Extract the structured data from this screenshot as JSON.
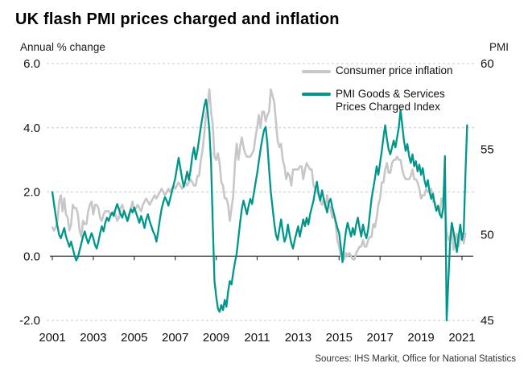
{
  "title": "UK flash PMI prices charged and inflation",
  "left_axis_label": "Annual % change",
  "right_axis_label": "PMI",
  "source": "Sources: IHS Markit, Office for National Statistics",
  "colors": {
    "cpi_line": "#c7c7c7",
    "pmi_line": "#00968b",
    "gridline": "#c9c9c9",
    "axis": "#3a3a3a",
    "text": "#111111"
  },
  "legend": [
    {
      "label": "Consumer price inflation",
      "color": "#c7c7c7"
    },
    {
      "label": "PMI Goods & Services\nPrices Charged Index",
      "color": "#00968b"
    }
  ],
  "chart_data": {
    "type": "line",
    "title": "UK flash PMI prices charged and inflation",
    "x_start_year": 2001,
    "points_per_year": 12,
    "x_tick_years": [
      2001,
      2003,
      2005,
      2007,
      2009,
      2011,
      2013,
      2015,
      2017,
      2019,
      2021
    ],
    "left_axis": {
      "label": "Annual % change",
      "tick_labels": [
        "6.0",
        "4.0",
        "2.0",
        "0.0",
        "-2.0"
      ],
      "tick_values": [
        6,
        4,
        2,
        0,
        -2
      ],
      "range": [
        -2,
        6
      ]
    },
    "right_axis": {
      "label": "PMI",
      "tick_labels": [
        "60",
        "55",
        "50",
        "45"
      ],
      "tick_values": [
        60,
        55,
        50,
        45
      ],
      "range": [
        45,
        60
      ]
    },
    "grid": "dashed horizontal, solid zero line",
    "legend_position": "top-right inside plot",
    "series": [
      {
        "name": "Consumer price inflation",
        "axis": "left",
        "color": "#c7c7c7",
        "values": [
          0.9,
          0.8,
          0.9,
          1.1,
          1.7,
          1.9,
          1.4,
          1.8,
          1.3,
          1.2,
          0.8,
          1.0,
          1.6,
          1.5,
          1.5,
          1.3,
          0.8,
          0.6,
          1.1,
          1.0,
          1.0,
          1.4,
          1.6,
          1.7,
          1.3,
          1.6,
          1.6,
          1.5,
          1.2,
          1.1,
          1.3,
          1.4,
          1.4,
          1.4,
          1.3,
          1.3,
          1.4,
          1.3,
          1.1,
          1.2,
          1.5,
          1.6,
          1.4,
          1.3,
          1.1,
          1.2,
          1.5,
          1.7,
          1.4,
          1.5,
          1.6,
          1.5,
          1.4,
          1.6,
          1.7,
          1.8,
          1.7,
          1.6,
          1.7,
          1.8,
          1.9,
          1.8,
          1.9,
          2.0,
          2.1,
          2.0,
          1.9,
          2.0,
          2.1,
          2.0,
          2.1,
          2.2,
          2.1,
          2.2,
          2.3,
          2.2,
          2.1,
          2.2,
          2.3,
          2.2,
          2.3,
          2.4,
          2.3,
          2.2,
          2.2,
          2.5,
          2.5,
          3.0,
          3.3,
          3.8,
          4.4,
          4.7,
          5.2,
          4.5,
          4.1,
          3.1,
          3.0,
          3.2,
          2.9,
          2.3,
          2.2,
          1.8,
          1.8,
          1.6,
          1.1,
          1.5,
          1.9,
          2.9,
          3.5,
          3.0,
          3.4,
          3.7,
          3.4,
          3.2,
          3.1,
          3.1,
          3.1,
          3.2,
          3.3,
          3.7,
          4.0,
          4.4,
          4.0,
          4.5,
          4.5,
          4.2,
          4.4,
          4.5,
          5.2,
          5.0,
          4.8,
          4.2,
          3.6,
          3.4,
          3.5,
          3.0,
          2.8,
          2.4,
          2.6,
          2.5,
          2.2,
          2.7,
          2.7,
          2.7,
          2.7,
          2.8,
          2.8,
          2.4,
          2.7,
          2.9,
          2.8,
          2.7,
          2.7,
          2.2,
          2.1,
          2.0,
          1.9,
          1.7,
          1.6,
          1.8,
          1.5,
          1.9,
          1.6,
          1.5,
          1.2,
          1.3,
          1.0,
          0.5,
          0.3,
          0.0,
          0.0,
          -0.1,
          0.1,
          0.0,
          0.1,
          0.0,
          -0.1,
          -0.1,
          0.1,
          0.2,
          0.3,
          0.3,
          0.5,
          0.3,
          0.3,
          0.5,
          0.6,
          0.6,
          1.0,
          0.9,
          1.2,
          1.6,
          1.8,
          2.3,
          2.3,
          2.7,
          2.9,
          2.6,
          2.6,
          2.9,
          3.0,
          3.0,
          3.1,
          3.0,
          3.0,
          2.7,
          2.5,
          2.4,
          2.4,
          2.4,
          2.5,
          2.7,
          2.4,
          2.4,
          2.3,
          2.1,
          1.8,
          1.9,
          1.9,
          2.1,
          2.0,
          2.0,
          2.1,
          1.7,
          1.7,
          1.5,
          1.5,
          1.3,
          1.8,
          1.7,
          1.5,
          0.8,
          0.5,
          0.6,
          1.0,
          0.2,
          0.5,
          0.7,
          0.3,
          0.6,
          0.7,
          0.4,
          0.7
        ]
      },
      {
        "name": "PMI Goods & Services Prices Charged Index",
        "axis": "right",
        "color": "#00968b",
        "values": [
          52.5,
          51.8,
          51.1,
          50.5,
          50.0,
          49.8,
          50.1,
          50.4,
          49.9,
          49.6,
          49.3,
          49.6,
          49.2,
          48.8,
          48.5,
          48.7,
          49.1,
          49.5,
          49.9,
          50.2,
          49.8,
          49.5,
          49.8,
          50.1,
          49.8,
          49.4,
          49.2,
          49.6,
          50.1,
          50.5,
          50.2,
          50.7,
          51.0,
          50.8,
          51.1,
          51.3,
          51.1,
          51.5,
          51.8,
          51.5,
          51.2,
          51.0,
          51.4,
          51.1,
          50.8,
          51.2,
          51.5,
          51.3,
          51.6,
          51.3,
          51.0,
          50.7,
          51.1,
          50.8,
          50.4,
          50.9,
          51.2,
          50.8,
          50.5,
          50.2,
          50.0,
          49.6,
          50.2,
          50.9,
          51.5,
          51.9,
          52.2,
          52.0,
          51.7,
          52.1,
          52.5,
          52.9,
          53.3,
          53.9,
          54.5,
          53.9,
          53.3,
          52.8,
          53.2,
          53.7,
          53.2,
          53.8,
          54.6,
          55.1,
          54.4,
          54.9,
          55.6,
          56.3,
          56.9,
          57.5,
          57.9,
          57.2,
          56.1,
          54.2,
          50.6,
          47.3,
          46.4,
          45.7,
          45.5,
          45.9,
          45.6,
          46.2,
          45.8,
          46.7,
          47.3,
          47.1,
          47.8,
          48.4,
          48.9,
          49.8,
          50.7,
          51.5,
          52.0,
          51.6,
          51.2,
          51.7,
          52.1,
          51.8,
          52.4,
          53.0,
          53.6,
          54.3,
          55.0,
          55.6,
          56.1,
          56.3,
          55.3,
          53.8,
          52.5,
          51.6,
          50.7,
          50.0,
          49.7,
          50.3,
          50.9,
          50.2,
          49.6,
          49.9,
          50.6,
          50.0,
          49.5,
          49.2,
          49.7,
          50.1,
          50.5,
          49.9,
          50.4,
          50.9,
          50.5,
          51.0,
          50.6,
          51.2,
          51.6,
          52.0,
          52.6,
          53.1,
          52.4,
          52.0,
          52.6,
          52.1,
          51.7,
          51.3,
          51.9,
          52.1,
          51.6,
          51.2,
          50.8,
          50.4,
          50.1,
          49.3,
          48.4,
          49.4,
          50.2,
          50.7,
          50.3,
          49.9,
          50.4,
          50.0,
          50.6,
          51.0,
          50.4,
          49.9,
          50.6,
          50.1,
          49.8,
          50.3,
          51.2,
          52.1,
          52.7,
          53.3,
          54.0,
          53.5,
          54.2,
          54.9,
          55.7,
          56.4,
          55.6,
          55.0,
          54.7,
          55.1,
          55.5,
          55.1,
          55.7,
          56.3,
          57.3,
          56.4,
          55.5,
          54.9,
          55.3,
          54.6,
          54.2,
          54.7,
          54.0,
          54.3,
          53.7,
          54.1,
          53.5,
          53.9,
          53.2,
          52.8,
          53.2,
          52.5,
          52.1,
          52.4,
          51.8,
          51.4,
          51.7,
          51.2,
          51.0,
          51.6,
          54.6,
          45.0,
          47.3,
          49.5,
          50.7,
          50.2,
          49.6,
          49.0,
          49.9,
          50.6,
          49.7,
          50.2,
          53.5,
          56.4
        ]
      }
    ]
  }
}
